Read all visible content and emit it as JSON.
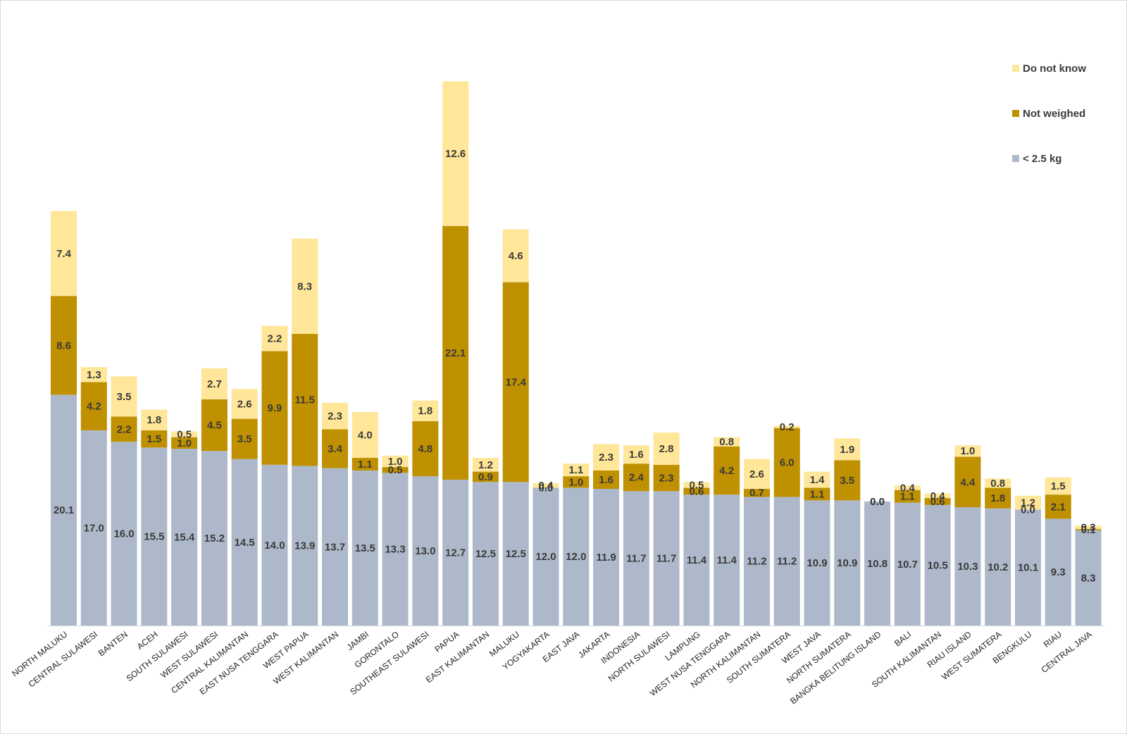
{
  "chart_data": {
    "type": "bar",
    "stacked": true,
    "title": "",
    "xlabel": "",
    "ylabel": "",
    "ylim": [
      0,
      49
    ],
    "grid": false,
    "legend_position": "top-right",
    "categories": [
      "NORTH MALUKU",
      "CENTRAL SULAWESI",
      "BANTEN",
      "ACEH",
      "SOUTH SULAWESI",
      "WEST SULAWESI",
      "CENTRAL KALIMANTAN",
      "EAST NUSA TENGGARA",
      "WEST PAPUA",
      "WEST KALIMANTAN",
      "JAMBI",
      "GORONTALO",
      "SOUTHEAST SULAWESI",
      "PAPUA",
      "EAST KALIMANTAN",
      "MALUKU",
      "YOGYAKARTA",
      "EAST JAVA",
      "JAKARTA",
      "INDONESIA",
      "NORTH SULAWESI",
      "LAMPUNG",
      "WEST NUSA TENGGARA",
      "NORTH KALIMANTAN",
      "SOUTH SUMATERA",
      "WEST JAVA",
      "NORTH SUMATERA",
      "BANGKA BELITUNG ISLAND",
      "BALI",
      "SOUTH KALIMANTAN",
      "RIAU ISLAND",
      "WEST SUMATERA",
      "BENGKULU",
      "RIAU",
      "CENTRAL JAVA"
    ],
    "series": [
      {
        "name": "< 2.5 kg",
        "color": "#adb9ca",
        "values": [
          20.1,
          17.0,
          16.0,
          15.5,
          15.4,
          15.2,
          14.5,
          14.0,
          13.9,
          13.7,
          13.5,
          13.3,
          13.0,
          12.7,
          12.5,
          12.5,
          12.0,
          12.0,
          11.9,
          11.7,
          11.7,
          11.4,
          11.4,
          11.2,
          11.2,
          10.9,
          10.9,
          10.8,
          10.7,
          10.5,
          10.3,
          10.2,
          10.1,
          9.3,
          8.3
        ]
      },
      {
        "name": "Not weighed",
        "color": "#bf9000",
        "values": [
          8.6,
          4.2,
          2.2,
          1.5,
          1.0,
          4.5,
          3.5,
          9.9,
          11.5,
          3.4,
          1.1,
          0.5,
          4.8,
          22.1,
          0.9,
          17.4,
          0.0,
          1.0,
          1.6,
          2.4,
          2.3,
          0.6,
          4.2,
          0.7,
          6.0,
          1.1,
          3.5,
          0.0,
          1.1,
          0.6,
          4.4,
          1.8,
          0.0,
          2.1,
          0.1
        ]
      },
      {
        "name": "Do not know",
        "color": "#ffe699",
        "values": [
          7.4,
          1.3,
          3.5,
          1.8,
          0.5,
          2.7,
          2.6,
          2.2,
          8.3,
          2.3,
          4.0,
          1.0,
          1.8,
          12.6,
          1.2,
          4.6,
          0.4,
          1.1,
          2.3,
          1.6,
          2.8,
          0.5,
          0.8,
          2.6,
          0.2,
          1.4,
          1.9,
          0.0,
          0.4,
          0.4,
          1.0,
          0.8,
          1.2,
          1.5,
          0.3
        ]
      }
    ],
    "legend": [
      {
        "label": "Do not know",
        "color": "#ffe699"
      },
      {
        "label": "Not weighed",
        "color": "#bf9000"
      },
      {
        "label": "< 2.5 kg",
        "color": "#adb9ca"
      }
    ]
  }
}
